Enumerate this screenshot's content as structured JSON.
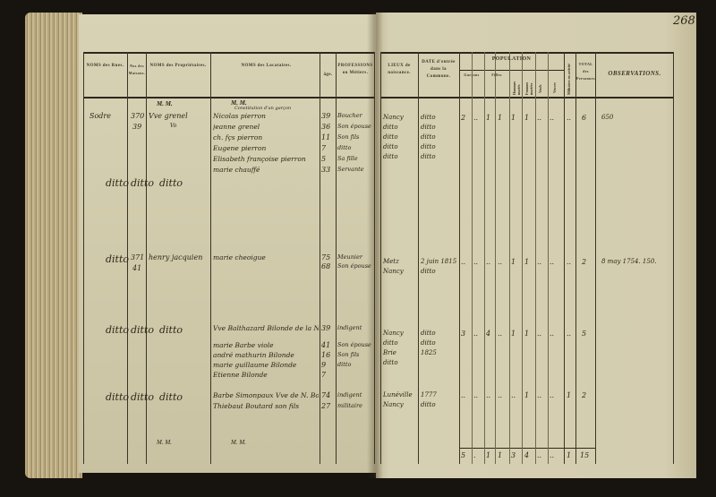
{
  "page_number": "268",
  "left_page": {
    "headers": {
      "streets": "NOMS des Rues.",
      "numbers": "Nos des Maisons.",
      "owners": "NOMS des Propriétaires.",
      "tenants": "NOMS des Locataires.",
      "age": "âge.",
      "professions": "PROFESSIONS ou Métiers."
    },
    "mm_owners": "M. M.",
    "mm_tenants": "M. M.",
    "entries": [
      {
        "street": "Sodre",
        "number": "370",
        "number_sub": "39",
        "owner": "Vve grenel",
        "owner_sub": "Vo",
        "note": "Constitution d'un garçon",
        "tenants": [
          {
            "name": "Nicolas pierron",
            "age": "39",
            "profession": "Boucher"
          },
          {
            "name": "jeanne grenel",
            "age": "36",
            "profession": "Son épouse"
          },
          {
            "name": "ch. fçs pierron",
            "age": "11",
            "profession": "Son fils"
          },
          {
            "name": "Eugene pierron",
            "age": "7",
            "profession": "ditto"
          },
          {
            "name": "Elisabeth françoise pierron",
            "age": "5",
            "profession": "Sa fille"
          },
          {
            "name": "marie chauffé",
            "age": "33",
            "profession": "Servante"
          }
        ]
      },
      {
        "street": "ditto",
        "number": "ditto",
        "owner": "ditto",
        "tenants": []
      },
      {
        "street": "ditto",
        "number": "371",
        "number_sub": "41",
        "owner": "henry jacquien",
        "tenants": [
          {
            "name": "marie cheoigue",
            "age": "75",
            "profession": "Meunier"
          },
          {
            "name": "",
            "age": "68",
            "profession": "Son épouse"
          }
        ]
      },
      {
        "street": "ditto",
        "number": "ditto",
        "owner": "ditto",
        "tenants": [
          {
            "name": "Vve Balthazard Bilonde de la Noue",
            "age": "39",
            "profession": "indigent"
          },
          {
            "name": "marie Barbe viole",
            "age": "41",
            "profession": "Son épouse"
          },
          {
            "name": "andré mathurin Bilonde",
            "age": "16",
            "profession": "Son fils"
          },
          {
            "name": "marie guillaume Bilonde",
            "age": "9",
            "profession": "ditto"
          },
          {
            "name": "Etienne Bilonde",
            "age": "7",
            "profession": ""
          }
        ]
      },
      {
        "street": "ditto",
        "number": "ditto",
        "owner": "ditto",
        "tenants": [
          {
            "name": "Barbe Simonpaux Vve de N. Boutard",
            "age": "74",
            "profession": "indigent"
          },
          {
            "name": "Thiebaut Boutard son fils",
            "age": "27",
            "profession": "militaire"
          }
        ]
      }
    ],
    "footer_mm": "M. M."
  },
  "right_page": {
    "headers": {
      "birthplace": "LIEUX de naissance.",
      "entry_date": "DATE d'entrée dans la Commune.",
      "population": "POPULATION",
      "boys": "Garçons",
      "girls": "Filles",
      "married_men": "Hommes mariés",
      "married_women": "Femmes mariées",
      "widowers": "Veufs",
      "widows": "Veuves",
      "military": "Militaires en activité",
      "total": "TOTAL des Personnes.",
      "observations": "OBSERVATIONS."
    },
    "entries": [
      {
        "birthplace": [
          "Nancy",
          "ditto",
          "ditto",
          "ditto",
          "ditto"
        ],
        "entry_date": [
          "ditto",
          "ditto",
          "ditto",
          "ditto",
          "ditto"
        ],
        "population": [
          "2",
          "..",
          "1",
          "1",
          "1",
          "1",
          "..",
          ".."
        ],
        "military": "..",
        "total": "6",
        "observations": "650"
      },
      {
        "birthplace": [
          "Metz",
          "Nancy"
        ],
        "entry_date": [
          "2 juin 1815",
          "ditto"
        ],
        "population": [
          "..",
          "..",
          "..",
          "..",
          "1",
          "1",
          "..",
          ".."
        ],
        "military": "..",
        "total": "2",
        "observations": "8 may 1754.  150."
      },
      {
        "birthplace": [
          "Nancy",
          "ditto",
          "Brie",
          "ditto"
        ],
        "entry_date": [
          "ditto",
          "ditto",
          "1825"
        ],
        "population": [
          "3",
          "..",
          "4",
          "..",
          "1",
          "1",
          "..",
          ".."
        ],
        "military": "..",
        "total": "5",
        "observations": ""
      },
      {
        "birthplace": [
          "Lunéville",
          "Nancy"
        ],
        "entry_date": [
          "1777",
          "ditto"
        ],
        "population": [
          "..",
          "..",
          "..",
          "..",
          "..",
          "1",
          "..",
          ".."
        ],
        "military": "1",
        "total": "2",
        "observations": ""
      }
    ],
    "totals": {
      "population": [
        "5",
        ".",
        "1",
        "1",
        "3",
        "4",
        "..",
        ".."
      ],
      "military": "1",
      "total": "15"
    }
  }
}
